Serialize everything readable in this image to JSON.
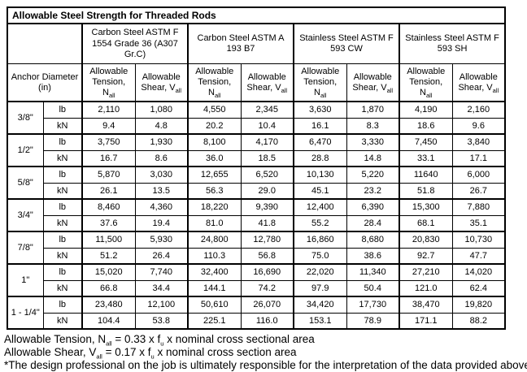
{
  "table": {
    "title": "Allowable Steel Strength for Threaded Rods",
    "anchor_header": "Anchor Diameter (in)",
    "groups": [
      "Carbon Steel ASTM F 1554 Grade 36 (A307 Gr.C)",
      "Carbon Steel ASTM A 193 B7",
      "Stainless Steel ASTM F 593 CW",
      "Stainless Steel ASTM F 593 SH"
    ],
    "col_headers": {
      "tension_prefix": "Allowable Tension, N",
      "shear_prefix": "Allowable Shear, V",
      "subscript": "all"
    },
    "unit_labels": {
      "pounds": "lb",
      "kilonewtons": "kN"
    },
    "rows": [
      {
        "diameter": "3/8\"",
        "lb": [
          "2,110",
          "1,080",
          "4,550",
          "2,345",
          "3,630",
          "1,870",
          "4,190",
          "2,160"
        ],
        "kN": [
          "9.4",
          "4.8",
          "20.2",
          "10.4",
          "16.1",
          "8.3",
          "18.6",
          "9.6"
        ]
      },
      {
        "diameter": "1/2\"",
        "lb": [
          "3,750",
          "1,930",
          "8,100",
          "4,170",
          "6,470",
          "3,330",
          "7,450",
          "3,840"
        ],
        "kN": [
          "16.7",
          "8.6",
          "36.0",
          "18.5",
          "28.8",
          "14.8",
          "33.1",
          "17.1"
        ]
      },
      {
        "diameter": "5/8\"",
        "lb": [
          "5,870",
          "3,030",
          "12,655",
          "6,520",
          "10,130",
          "5,220",
          "11640",
          "6,000"
        ],
        "kN": [
          "26.1",
          "13.5",
          "56.3",
          "29.0",
          "45.1",
          "23.2",
          "51.8",
          "26.7"
        ]
      },
      {
        "diameter": "3/4\"",
        "lb": [
          "8,460",
          "4,360",
          "18,220",
          "9,390",
          "12,400",
          "6,390",
          "15,300",
          "7,880"
        ],
        "kN": [
          "37.6",
          "19.4",
          "81.0",
          "41.8",
          "55.2",
          "28.4",
          "68.1",
          "35.1"
        ]
      },
      {
        "diameter": "7/8\"",
        "lb": [
          "11,500",
          "5,930",
          "24,800",
          "12,780",
          "16,860",
          "8,680",
          "20,830",
          "10,730"
        ],
        "kN": [
          "51.2",
          "26.4",
          "110.3",
          "56.8",
          "75.0",
          "38.6",
          "92.7",
          "47.7"
        ]
      },
      {
        "diameter": "1\"",
        "lb": [
          "15,020",
          "7,740",
          "32,400",
          "16,690",
          "22,020",
          "11,340",
          "27,210",
          "14,020"
        ],
        "kN": [
          "66.8",
          "34.4",
          "144.1",
          "74.2",
          "97.9",
          "50.4",
          "121.0",
          "62.4"
        ]
      },
      {
        "diameter": "1 - 1/4\"",
        "lb": [
          "23,480",
          "12,100",
          "50,610",
          "26,070",
          "34,420",
          "17,730",
          "38,470",
          "19,820"
        ],
        "kN": [
          "104.4",
          "53.8",
          "225.1",
          "116.0",
          "153.1",
          "78.9",
          "171.1",
          "88.2"
        ]
      }
    ]
  },
  "footnotes": {
    "tension": {
      "text_1": "Allowable Tension, N",
      "sub_1": "all",
      "text_2": " = 0.33 x f",
      "sub_2": "u",
      "text_3": " x nominal cross sectional area"
    },
    "shear": {
      "text_1": "Allowable Shear, V",
      "sub_1": "all",
      "text_2": " = 0.17 x f",
      "sub_2": "u",
      "text_3": " x nominal cross section area"
    },
    "disclaimer": "*The design professional on the job is ultimately responsible for the interpretation of the data provided above."
  }
}
